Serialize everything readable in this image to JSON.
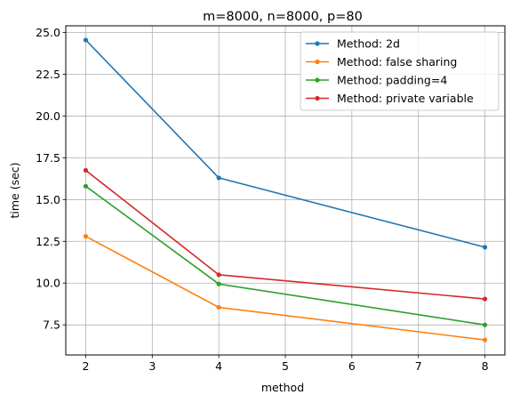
{
  "chart_data": {
    "type": "line",
    "title": "m=8000, n=8000, p=80",
    "xlabel": "method",
    "ylabel": "time (sec)",
    "x": [
      2,
      4,
      8
    ],
    "xlim": [
      1.7,
      8.3
    ],
    "ylim": [
      5.7,
      25.4
    ],
    "xticks": [
      2,
      3,
      4,
      5,
      6,
      7,
      8
    ],
    "yticks": [
      7.5,
      10.0,
      12.5,
      15.0,
      17.5,
      20.0,
      22.5,
      25.0
    ],
    "ytick_labels": [
      "7.5",
      "10.0",
      "12.5",
      "15.0",
      "17.5",
      "20.0",
      "22.5",
      "25.0"
    ],
    "grid": true,
    "legend_position": "top-right",
    "series": [
      {
        "name": "Method: 2d",
        "color": "#1f77b4",
        "values": [
          24.55,
          16.3,
          12.15
        ]
      },
      {
        "name": "Method: false sharing",
        "color": "#ff7f0e",
        "values": [
          12.8,
          8.55,
          6.6
        ]
      },
      {
        "name": "Method: padding=4",
        "color": "#2ca02c",
        "values": [
          15.8,
          9.95,
          7.5
        ]
      },
      {
        "name": "Method: private variable",
        "color": "#d62728",
        "values": [
          16.75,
          10.5,
          9.05
        ]
      }
    ]
  }
}
